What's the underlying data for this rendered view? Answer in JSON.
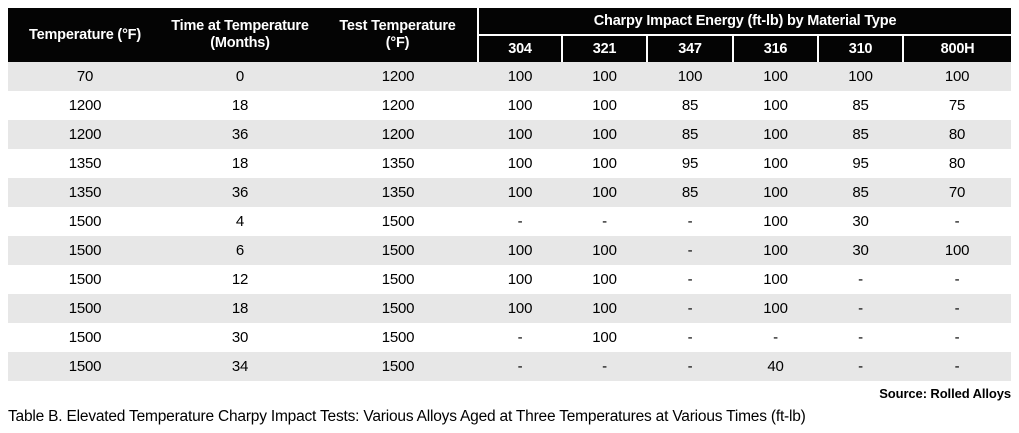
{
  "colors": {
    "header_bg": "#040404",
    "header_text": "#ffffff",
    "row_stripe": "#e7e7e7",
    "row_plain": "#ffffff"
  },
  "table": {
    "columns_left": [
      {
        "label_line1": "Temperature (°F)",
        "label_line2": ""
      },
      {
        "label_line1": "Time at Temperature",
        "label_line2": "(Months)"
      },
      {
        "label_line1": "Test Temperature",
        "label_line2": "(°F)"
      }
    ],
    "group_header": "Charpy Impact Energy (ft-lb) by Material Type",
    "material_columns": [
      "304",
      "321",
      "347",
      "316",
      "310",
      "800H"
    ],
    "rows": [
      {
        "temperature": "70",
        "time_months": "0",
        "test_temperature": "1200",
        "values": [
          "100",
          "100",
          "100",
          "100",
          "100",
          "100"
        ]
      },
      {
        "temperature": "1200",
        "time_months": "18",
        "test_temperature": "1200",
        "values": [
          "100",
          "100",
          "85",
          "100",
          "85",
          "75"
        ]
      },
      {
        "temperature": "1200",
        "time_months": "36",
        "test_temperature": "1200",
        "values": [
          "100",
          "100",
          "85",
          "100",
          "85",
          "80"
        ]
      },
      {
        "temperature": "1350",
        "time_months": "18",
        "test_temperature": "1350",
        "values": [
          "100",
          "100",
          "95",
          "100",
          "95",
          "80"
        ]
      },
      {
        "temperature": "1350",
        "time_months": "36",
        "test_temperature": "1350",
        "values": [
          "100",
          "100",
          "85",
          "100",
          "85",
          "70"
        ]
      },
      {
        "temperature": "1500",
        "time_months": "4",
        "test_temperature": "1500",
        "values": [
          "-",
          "-",
          "-",
          "100",
          "30",
          "-"
        ]
      },
      {
        "temperature": "1500",
        "time_months": "6",
        "test_temperature": "1500",
        "values": [
          "100",
          "100",
          "-",
          "100",
          "30",
          "100"
        ]
      },
      {
        "temperature": "1500",
        "time_months": "12",
        "test_temperature": "1500",
        "values": [
          "100",
          "100",
          "-",
          "100",
          "-",
          "-"
        ]
      },
      {
        "temperature": "1500",
        "time_months": "18",
        "test_temperature": "1500",
        "values": [
          "100",
          "100",
          "-",
          "100",
          "-",
          "-"
        ]
      },
      {
        "temperature": "1500",
        "time_months": "30",
        "test_temperature": "1500",
        "values": [
          "-",
          "100",
          "-",
          "-",
          "-",
          "-"
        ]
      },
      {
        "temperature": "1500",
        "time_months": "34",
        "test_temperature": "1500",
        "values": [
          "-",
          "-",
          "-",
          "40",
          "-",
          "-"
        ]
      }
    ]
  },
  "source": "Source: Rolled Alloys",
  "caption": "Table B. Elevated Temperature Charpy Impact Tests: Various Alloys Aged at Three Temperatures at Various Times (ft-lb)"
}
